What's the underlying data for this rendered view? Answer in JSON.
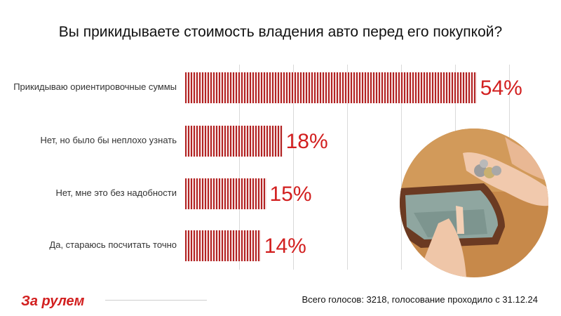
{
  "chart_data": {
    "type": "bar",
    "orientation": "horizontal",
    "title": "Вы прикидываете стоимость владения авто перед его покупкой?",
    "categories": [
      "Прикидываю ориентировочные суммы",
      "Нет, но было бы неплохо узнать",
      "Нет, мне это без надобности",
      "Да, стараюсь посчитать точно"
    ],
    "values": [
      54,
      18,
      15,
      14
    ],
    "value_labels": [
      "54%",
      "18%",
      "15%",
      "14%"
    ],
    "xlim": [
      0,
      60
    ],
    "grid": true,
    "xlabel": "",
    "ylabel": ""
  },
  "footer": {
    "votes_text": "Всего голосов: 3218, голосование проходило с 31.12.24"
  },
  "brand": {
    "logo_text": "За рулем",
    "color": "#d21f1f"
  },
  "colors": {
    "bar": "#b22222",
    "value_label": "#d21f1f"
  },
  "image": {
    "description_icon": "wallet-coins-photo-icon"
  }
}
